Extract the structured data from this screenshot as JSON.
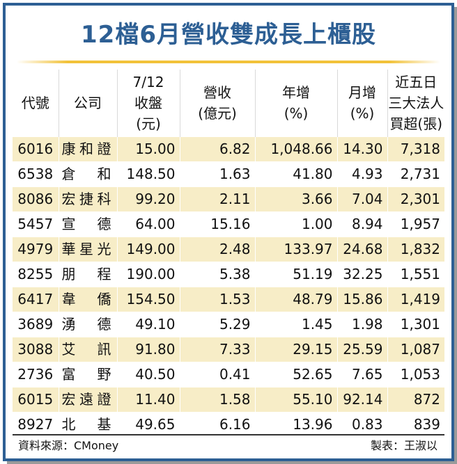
{
  "title": "12檔6月營收雙成長上櫃股",
  "headers": {
    "code": "代號",
    "company": "公司",
    "close": "7/12\n收盤\n(元)",
    "revenue": "營收\n(億元)",
    "yoy": "年增\n(%)",
    "mom": "月增\n(%)",
    "net_buy": "近五日\n三大法人\n買超(張)"
  },
  "rows": [
    {
      "code": "6016",
      "company": "康和證",
      "close": "15.00",
      "revenue": "6.82",
      "yoy": "1,048.66",
      "mom": "14.30",
      "net_buy": "7,318"
    },
    {
      "code": "6538",
      "company": "倉和",
      "close": "148.50",
      "revenue": "1.63",
      "yoy": "41.80",
      "mom": "4.93",
      "net_buy": "2,731"
    },
    {
      "code": "8086",
      "company": "宏捷科",
      "close": "99.20",
      "revenue": "2.11",
      "yoy": "3.66",
      "mom": "7.04",
      "net_buy": "2,301"
    },
    {
      "code": "5457",
      "company": "宣德",
      "close": "64.00",
      "revenue": "15.16",
      "yoy": "1.00",
      "mom": "8.94",
      "net_buy": "1,957"
    },
    {
      "code": "4979",
      "company": "華星光",
      "close": "149.00",
      "revenue": "2.48",
      "yoy": "133.97",
      "mom": "24.68",
      "net_buy": "1,832"
    },
    {
      "code": "8255",
      "company": "朋程",
      "close": "190.00",
      "revenue": "5.38",
      "yoy": "51.19",
      "mom": "32.25",
      "net_buy": "1,551"
    },
    {
      "code": "6417",
      "company": "韋僑",
      "close": "154.50",
      "revenue": "1.53",
      "yoy": "48.79",
      "mom": "15.86",
      "net_buy": "1,419"
    },
    {
      "code": "3689",
      "company": "湧德",
      "close": "49.10",
      "revenue": "5.29",
      "yoy": "1.45",
      "mom": "1.98",
      "net_buy": "1,301"
    },
    {
      "code": "3088",
      "company": "艾訊",
      "close": "91.80",
      "revenue": "7.33",
      "yoy": "29.15",
      "mom": "25.59",
      "net_buy": "1,087"
    },
    {
      "code": "2736",
      "company": "富野",
      "close": "40.50",
      "revenue": "0.41",
      "yoy": "52.65",
      "mom": "7.65",
      "net_buy": "1,053"
    },
    {
      "code": "6015",
      "company": "宏遠證",
      "close": "11.40",
      "revenue": "1.58",
      "yoy": "55.10",
      "mom": "92.14",
      "net_buy": "872"
    },
    {
      "code": "8927",
      "company": "北基",
      "close": "49.65",
      "revenue": "6.16",
      "yoy": "13.96",
      "mom": "0.83",
      "net_buy": "839"
    }
  ],
  "footer": {
    "source": "資料來源：CMoney",
    "maker": "製表：王淑以"
  },
  "colors": {
    "title": "#2d5f94",
    "rule": "#f2c23a",
    "row_highlight": "#f7edc7",
    "frame": "#2d5f94"
  }
}
